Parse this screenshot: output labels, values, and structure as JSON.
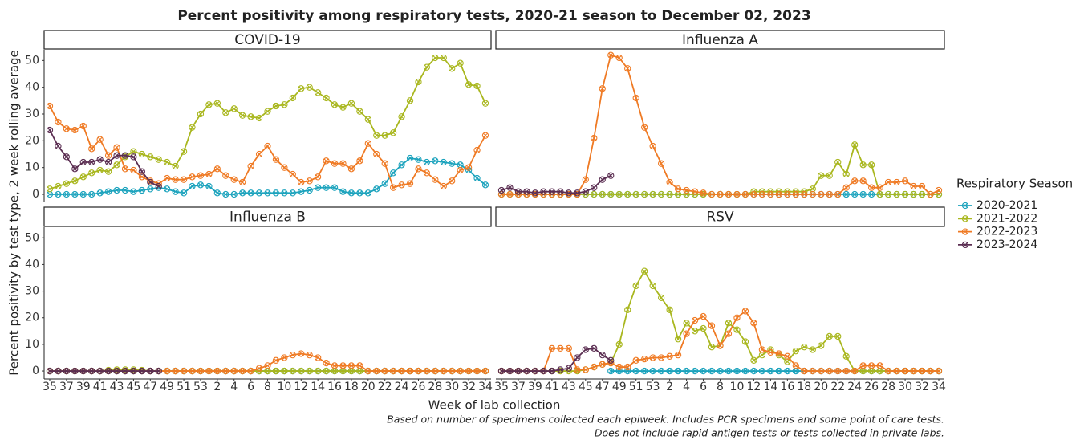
{
  "title": "Percent positivity among respiratory tests, 2020-21 season to December 02, 2023",
  "y_label": "Percent positivity by test type, 2 week rolling average",
  "x_label": "Week of lab collection",
  "notes": [
    "Based on number of specimens collected each epiweek. Includes PCR specimens and some point of care tests.",
    "Does not include rapid antigen tests or tests collected in private labs."
  ],
  "legend_title": "Respiratory Season",
  "seasons": [
    {
      "name": "2020-2021",
      "color": "#1ca3bd"
    },
    {
      "name": "2021-2022",
      "color": "#a9b71f"
    },
    {
      "name": "2022-2023",
      "color": "#ef7a24"
    },
    {
      "name": "2023-2024",
      "color": "#5b2e52"
    }
  ],
  "categories": [
    "35",
    null,
    "37",
    null,
    "39",
    null,
    "41",
    null,
    "43",
    null,
    "45",
    null,
    "47",
    null,
    "49",
    null,
    "51",
    null,
    "53",
    null,
    "2",
    null,
    "4",
    null,
    "6",
    null,
    "8",
    null,
    "10",
    null,
    "12",
    null,
    "14",
    null,
    "16",
    null,
    "18",
    null,
    "20",
    null,
    "22",
    null,
    "24",
    null,
    "26",
    null,
    "28",
    null,
    "30",
    null,
    "32",
    null,
    "34"
  ],
  "chart_data": [
    {
      "type": "line",
      "title": "COVID-19",
      "ylim": [
        -3,
        54
      ],
      "yticks": [
        0,
        10,
        20,
        30,
        40,
        50
      ],
      "series": [
        {
          "values": [
            0,
            0,
            0,
            0,
            0,
            0,
            0.5,
            1,
            1.5,
            1.5,
            1,
            1.5,
            2,
            2.5,
            2,
            1,
            0.5,
            3,
            3.5,
            3,
            0.5,
            0,
            0,
            0.5,
            0.5,
            0.5,
            0.5,
            0.5,
            0.5,
            0.5,
            1,
            1.5,
            2.5,
            2.5,
            2.5,
            1,
            0.5,
            0.5,
            0.5,
            2,
            4,
            8,
            11,
            13.5,
            13,
            12,
            12.5,
            12,
            11.5,
            11,
            9,
            6,
            3.5
          ]
        },
        {
          "values": [
            2,
            3,
            4,
            5,
            6.5,
            8,
            9,
            8.5,
            11,
            14,
            16,
            15,
            14,
            13,
            12,
            10.5,
            16,
            25,
            30,
            33.5,
            34,
            30.5,
            32,
            29.5,
            29,
            28.5,
            31,
            33,
            33.5,
            36,
            39.5,
            40,
            38,
            36,
            33.5,
            32.5,
            34,
            31,
            28,
            22,
            22,
            23,
            29,
            35,
            42,
            47.5,
            51,
            51,
            47,
            49,
            41,
            40.5,
            34
          ]
        },
        {
          "values": [
            33,
            27,
            24.5,
            24,
            25.5,
            17,
            20.5,
            14.5,
            17.5,
            9.5,
            9,
            6.5,
            5,
            4,
            6,
            5.5,
            5.5,
            6.5,
            7,
            7.5,
            9.5,
            7,
            5.5,
            4.5,
            10.5,
            15,
            18,
            13,
            10,
            7.5,
            4.5,
            5,
            6.5,
            12.5,
            11.5,
            11.5,
            9.5,
            12.5,
            19,
            15,
            11.5,
            2.5,
            3.5,
            4,
            9.5,
            8,
            5.5,
            3,
            5,
            9,
            10,
            16.5,
            22
          ]
        },
        {
          "values": [
            24,
            18,
            14,
            9.5,
            12,
            12,
            13,
            12,
            14.5,
            14.5,
            14,
            8.5,
            4.5,
            3,
            null,
            null,
            null,
            null,
            null,
            null,
            null,
            null,
            null,
            null,
            null,
            null,
            null,
            null,
            null,
            null,
            null,
            null,
            null,
            null,
            null,
            null,
            null,
            null,
            null,
            null,
            null,
            null,
            null,
            null,
            null,
            null,
            null,
            null,
            null,
            null,
            null,
            null,
            null
          ]
        }
      ]
    },
    {
      "type": "line",
      "title": "Influenza A",
      "ylim": [
        -3,
        54
      ],
      "series": [
        {
          "values": [
            0,
            0,
            0,
            0,
            0,
            0,
            0,
            0,
            0,
            0,
            0,
            0,
            0,
            0,
            0,
            0,
            0,
            0,
            0,
            0,
            0,
            0,
            0,
            0,
            0,
            0,
            0,
            0,
            0,
            0,
            0,
            0,
            0,
            0,
            0,
            0,
            0,
            0,
            0,
            0,
            0,
            0,
            0,
            0,
            0,
            0,
            0,
            0,
            0,
            0,
            0,
            0,
            0
          ]
        },
        {
          "values": [
            0,
            0,
            0,
            0,
            0,
            0,
            0,
            0,
            0,
            0,
            0,
            0,
            0,
            0,
            0,
            0,
            0,
            0,
            0,
            0,
            0,
            0,
            0,
            0,
            0,
            0,
            0,
            0,
            0,
            0,
            1,
            1,
            1,
            1,
            1,
            1,
            1,
            2,
            7,
            7,
            12,
            7.5,
            18.5,
            11,
            11,
            0,
            0,
            0,
            0,
            0,
            0,
            0,
            0
          ]
        },
        {
          "values": [
            0,
            0,
            0,
            0,
            0,
            0,
            0,
            0,
            0,
            0,
            5.5,
            21,
            39.5,
            52,
            51,
            47,
            36,
            25,
            18,
            11.5,
            4.5,
            2,
            1.5,
            1,
            0.5,
            0,
            0,
            0,
            0,
            0,
            0,
            0,
            0,
            0,
            0,
            0,
            0,
            0,
            0,
            0,
            0,
            2.5,
            5,
            5,
            2.5,
            2.5,
            4.5,
            4.5,
            5,
            3,
            3,
            0,
            1.5
          ]
        },
        {
          "values": [
            1.5,
            2.5,
            1,
            1,
            0.5,
            1,
            1,
            1,
            0.5,
            0.5,
            1,
            2.5,
            5.5,
            7,
            null,
            null,
            null,
            null,
            null,
            null,
            null,
            null,
            null,
            null,
            null,
            null,
            null,
            null,
            null,
            null,
            null,
            null,
            null,
            null,
            null,
            null,
            null,
            null,
            null,
            null,
            null,
            null,
            null,
            null,
            null,
            null,
            null,
            null,
            null,
            null,
            null,
            null,
            null
          ]
        }
      ]
    },
    {
      "type": "line",
      "title": "Influenza B",
      "ylim": [
        -3,
        54
      ],
      "yticks": [
        0,
        10,
        20,
        30,
        40,
        50
      ],
      "series": [
        {
          "values": [
            0,
            0,
            0,
            0,
            0,
            0,
            0,
            0,
            0,
            0,
            0,
            0,
            0,
            0,
            0,
            0,
            0,
            0,
            0,
            0,
            0,
            0,
            0,
            0,
            0,
            0,
            0,
            0,
            0,
            0,
            0,
            0,
            0,
            0,
            0,
            0,
            0,
            0,
            0,
            0,
            0,
            0,
            0,
            0,
            0,
            0,
            0,
            0,
            0,
            0,
            0,
            0,
            0
          ]
        },
        {
          "values": [
            0,
            0,
            0,
            0,
            0,
            0,
            0,
            0.3,
            0.5,
            0.5,
            0.5,
            0.3,
            0,
            0,
            0,
            0,
            0,
            0,
            0,
            0,
            0,
            0,
            0,
            0,
            0,
            0,
            0,
            0,
            0,
            0,
            0,
            0,
            0,
            0,
            0,
            0,
            0,
            0,
            0,
            0,
            0,
            0,
            0,
            0,
            0,
            0,
            0,
            0,
            0,
            0,
            0,
            0,
            0
          ]
        },
        {
          "values": [
            0,
            0,
            0,
            0,
            0,
            0,
            0,
            0,
            0,
            0,
            0,
            0,
            0,
            0,
            0,
            0,
            0,
            0,
            0,
            0,
            0,
            0,
            0,
            0,
            0,
            1,
            2,
            4,
            5,
            6,
            6.5,
            6,
            5,
            3,
            2,
            2,
            2,
            2,
            0,
            0,
            0,
            0,
            0,
            0,
            0,
            0,
            0,
            0,
            0,
            0,
            0,
            0,
            0
          ]
        },
        {
          "values": [
            0,
            0,
            0,
            0,
            0,
            0,
            0,
            0,
            0,
            0,
            0,
            0,
            0,
            0,
            null,
            null,
            null,
            null,
            null,
            null,
            null,
            null,
            null,
            null,
            null,
            null,
            null,
            null,
            null,
            null,
            null,
            null,
            null,
            null,
            null,
            null,
            null,
            null,
            null,
            null,
            null,
            null,
            null,
            null,
            null,
            null,
            null,
            null,
            null,
            null,
            null,
            null,
            null
          ]
        }
      ]
    },
    {
      "type": "line",
      "title": "RSV",
      "ylim": [
        -3,
        54
      ],
      "series": [
        {
          "values": [
            null,
            null,
            null,
            null,
            null,
            null,
            null,
            null,
            null,
            null,
            null,
            null,
            null,
            0,
            0,
            0,
            0,
            0,
            0,
            0,
            0,
            0,
            0,
            0,
            0,
            0,
            0,
            0,
            0,
            0,
            0,
            0,
            0,
            0,
            0,
            0,
            0,
            0,
            0,
            0,
            0,
            0,
            0,
            0,
            0,
            0,
            0,
            0,
            0,
            0,
            0,
            0,
            0
          ]
        },
        {
          "values": [
            0,
            0,
            0,
            0,
            0,
            0,
            0,
            0,
            0,
            0,
            0.5,
            1.5,
            2.5,
            3,
            10,
            23,
            32,
            37.5,
            32,
            27.5,
            23,
            12,
            18,
            15,
            16,
            9,
            9.5,
            18,
            15.5,
            11,
            4,
            6,
            8,
            6,
            3.5,
            7.5,
            9,
            8,
            9.5,
            13,
            13,
            5.5,
            0,
            0,
            0,
            0,
            0,
            0,
            0,
            0,
            0,
            0,
            0
          ]
        },
        {
          "values": [
            0,
            0,
            0,
            0,
            0,
            0,
            8.5,
            8.5,
            8.5,
            0.5,
            0.5,
            1.5,
            2.5,
            3,
            1.5,
            1.5,
            4,
            4.5,
            5,
            5,
            5.5,
            6,
            14,
            19,
            20.5,
            17,
            9.5,
            14,
            20,
            22.5,
            18,
            8,
            7,
            6.5,
            5.5,
            2,
            0,
            0,
            0,
            0,
            0,
            0,
            0,
            2,
            2,
            2,
            0,
            0,
            0,
            0,
            0,
            0,
            0
          ]
        },
        {
          "values": [
            0,
            0,
            0,
            0,
            0,
            0,
            0,
            0.5,
            1,
            5,
            8,
            8.5,
            6,
            4,
            null,
            null,
            null,
            null,
            null,
            null,
            null,
            null,
            null,
            null,
            null,
            null,
            null,
            null,
            null,
            null,
            null,
            null,
            null,
            null,
            null,
            null,
            null,
            null,
            null,
            null,
            null,
            null,
            null,
            null,
            null,
            null,
            null,
            null,
            null,
            null,
            null,
            null,
            null
          ]
        }
      ]
    }
  ]
}
